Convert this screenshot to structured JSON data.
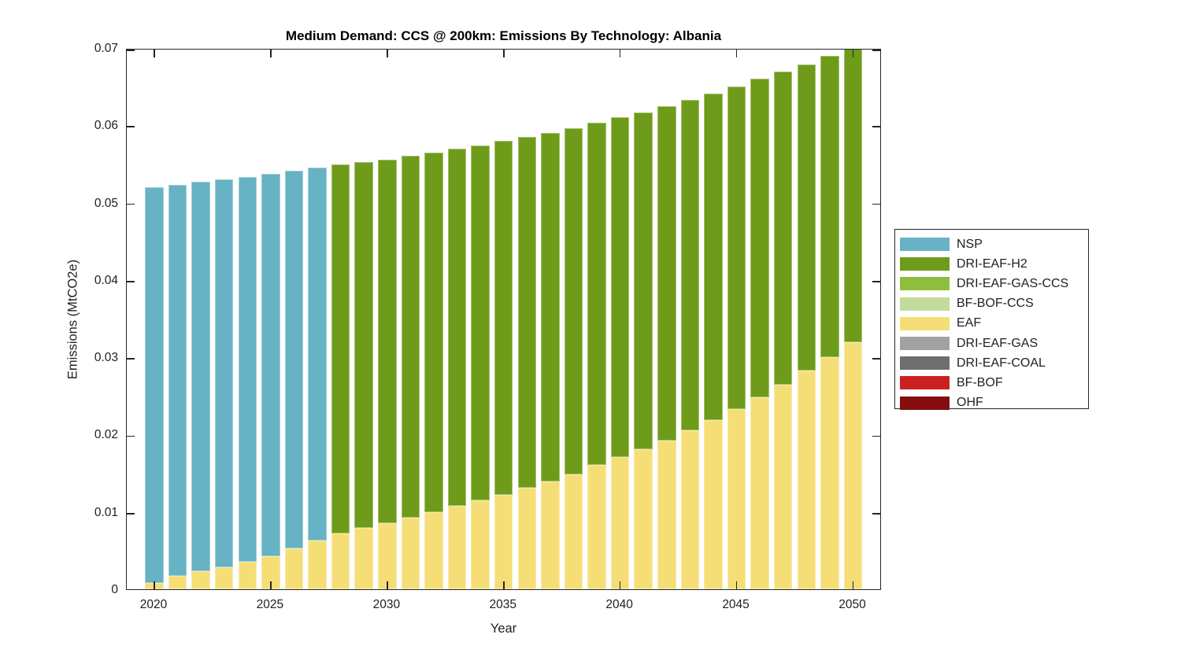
{
  "title": "Medium Demand: CCS @ 200km: Emissions By Technology: Albania",
  "chart_data": {
    "type": "bar",
    "stacked": true,
    "title": "Medium Demand: CCS @ 200km: Emissions By Technology: Albania",
    "xlabel": "Year",
    "ylabel": "Emissions (MtCO2e)",
    "ylim": [
      0,
      0.07
    ],
    "grid": false,
    "legend_position": "right-outside",
    "yticks": [
      0,
      0.01,
      0.02,
      0.03,
      0.04,
      0.05,
      0.06,
      0.07
    ],
    "ytick_labels": [
      "0",
      "0.01",
      "0.02",
      "0.03",
      "0.04",
      "0.05",
      "0.06",
      "0.07"
    ],
    "xticks": [
      2020,
      2025,
      2030,
      2035,
      2040,
      2045,
      2050
    ],
    "xtick_labels": [
      "2020",
      "2025",
      "2030",
      "2035",
      "2040",
      "2045",
      "2050"
    ],
    "years": [
      2020,
      2021,
      2022,
      2023,
      2024,
      2025,
      2026,
      2027,
      2028,
      2029,
      2030,
      2031,
      2032,
      2033,
      2034,
      2035,
      2036,
      2037,
      2038,
      2039,
      2040,
      2041,
      2042,
      2043,
      2044,
      2045,
      2046,
      2047,
      2048,
      2049,
      2050
    ],
    "series": [
      {
        "name": "NSP",
        "color": "#67B2C4",
        "values": [
          0.0512,
          0.0506,
          0.0504,
          0.0502,
          0.0497,
          0.0494,
          0.0488,
          0.0482,
          0,
          0,
          0,
          0,
          0,
          0,
          0,
          0,
          0,
          0,
          0,
          0,
          0,
          0,
          0,
          0,
          0,
          0,
          0,
          0,
          0,
          0,
          0
        ]
      },
      {
        "name": "DRI-EAF-H2",
        "color": "#6F9B1A",
        "values": [
          0,
          0,
          0,
          0,
          0,
          0,
          0,
          0,
          0.0477,
          0.0474,
          0.0471,
          0.0468,
          0.0465,
          0.0462,
          0.0459,
          0.0458,
          0.0454,
          0.0451,
          0.0447,
          0.0442,
          0.0439,
          0.0436,
          0.0433,
          0.0427,
          0.0422,
          0.0417,
          0.0412,
          0.0404,
          0.0396,
          0.039,
          0.0385
        ]
      },
      {
        "name": "DRI-EAF-GAS-CCS",
        "color": "#8FBE3E",
        "values": [
          0,
          0,
          0,
          0,
          0,
          0,
          0,
          0,
          0,
          0,
          0,
          0,
          0,
          0,
          0,
          0,
          0,
          0,
          0,
          0,
          0,
          0,
          0,
          0,
          0,
          0,
          0,
          0,
          0,
          0,
          0
        ]
      },
      {
        "name": "BF-BOF-CCS",
        "color": "#C3DC9B",
        "values": [
          0,
          0,
          0,
          0,
          0,
          0,
          0,
          0,
          0,
          0,
          0,
          0,
          0,
          0,
          0,
          0,
          0,
          0,
          0,
          0,
          0,
          0,
          0,
          0,
          0,
          0,
          0,
          0,
          0,
          0,
          0
        ]
      },
      {
        "name": "EAF",
        "color": "#F6DE77",
        "values": [
          0.0008,
          0.0017,
          0.0023,
          0.0028,
          0.0036,
          0.0043,
          0.0053,
          0.0063,
          0.0072,
          0.0079,
          0.0085,
          0.0093,
          0.01,
          0.0108,
          0.0115,
          0.0122,
          0.0131,
          0.0139,
          0.0149,
          0.0161,
          0.0171,
          0.0181,
          0.0192,
          0.0206,
          0.0219,
          0.0233,
          0.0248,
          0.0265,
          0.0283,
          0.03,
          0.032
        ]
      },
      {
        "name": "DRI-EAF-GAS",
        "color": "#A2A2A2",
        "values": [
          0,
          0,
          0,
          0,
          0,
          0,
          0,
          0,
          0,
          0,
          0,
          0,
          0,
          0,
          0,
          0,
          0,
          0,
          0,
          0,
          0,
          0,
          0,
          0,
          0,
          0,
          0,
          0,
          0,
          0,
          0
        ]
      },
      {
        "name": "DRI-EAF-COAL",
        "color": "#6F6F6F",
        "values": [
          0,
          0,
          0,
          0,
          0,
          0,
          0,
          0,
          0,
          0,
          0,
          0,
          0,
          0,
          0,
          0,
          0,
          0,
          0,
          0,
          0,
          0,
          0,
          0,
          0,
          0,
          0,
          0,
          0,
          0,
          0
        ]
      },
      {
        "name": "BF-BOF",
        "color": "#CB2120",
        "values": [
          0,
          0,
          0,
          0,
          0,
          0,
          0,
          0,
          0,
          0,
          0,
          0,
          0,
          0,
          0,
          0,
          0,
          0,
          0,
          0,
          0,
          0,
          0,
          0,
          0,
          0,
          0,
          0,
          0,
          0,
          0
        ]
      },
      {
        "name": "OHF",
        "color": "#870E0E",
        "values": [
          0,
          0,
          0,
          0,
          0,
          0,
          0,
          0,
          0,
          0,
          0,
          0,
          0,
          0,
          0,
          0,
          0,
          0,
          0,
          0,
          0,
          0,
          0,
          0,
          0,
          0,
          0,
          0,
          0,
          0,
          0
        ]
      }
    ]
  }
}
